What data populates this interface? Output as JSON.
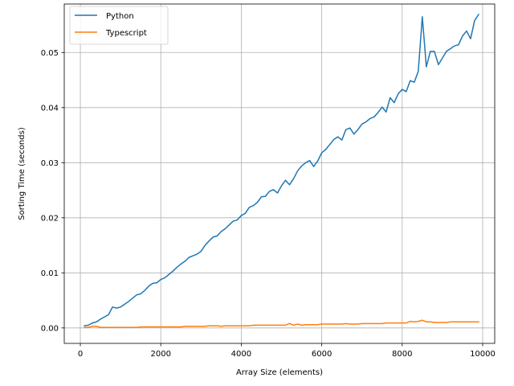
{
  "chart_data": {
    "type": "line",
    "title": "",
    "xlabel": "Array Size (elements)",
    "ylabel": "Sorting Time (seconds)",
    "xlim": [
      -400,
      10300
    ],
    "ylim": [
      -0.0028,
      0.0588
    ],
    "xticks": [
      0,
      2000,
      4000,
      6000,
      8000,
      10000
    ],
    "xtick_labels": [
      "0",
      "2000",
      "4000",
      "6000",
      "8000",
      "10000"
    ],
    "yticks": [
      0.0,
      0.01,
      0.02,
      0.03,
      0.04,
      0.05
    ],
    "ytick_labels": [
      "0.00",
      "0.01",
      "0.02",
      "0.03",
      "0.04",
      "0.05"
    ],
    "grid": true,
    "legend_position": "upper-left",
    "series": [
      {
        "name": "Python",
        "color": "#1f77b4",
        "x": [
          100,
          200,
          300,
          400,
          500,
          600,
          700,
          800,
          900,
          1000,
          1100,
          1200,
          1300,
          1400,
          1500,
          1600,
          1700,
          1800,
          1900,
          2000,
          2100,
          2200,
          2300,
          2400,
          2500,
          2600,
          2700,
          2800,
          2900,
          3000,
          3100,
          3200,
          3300,
          3400,
          3500,
          3600,
          3700,
          3800,
          3900,
          4000,
          4100,
          4200,
          4300,
          4400,
          4500,
          4600,
          4700,
          4800,
          4900,
          5000,
          5100,
          5200,
          5300,
          5400,
          5500,
          5600,
          5700,
          5800,
          5900,
          6000,
          6100,
          6200,
          6300,
          6400,
          6500,
          6600,
          6700,
          6800,
          6900,
          7000,
          7100,
          7200,
          7300,
          7400,
          7500,
          7600,
          7700,
          7800,
          7900,
          8000,
          8100,
          8200,
          8300,
          8400,
          8500,
          8600,
          8700,
          8800,
          8900,
          9000,
          9100,
          9200,
          9300,
          9400,
          9500,
          9600,
          9700,
          9800,
          9900
        ],
        "y": [
          0.0004,
          0.0005,
          0.0009,
          0.0011,
          0.0016,
          0.002,
          0.0024,
          0.0038,
          0.0036,
          0.0038,
          0.0043,
          0.0048,
          0.0054,
          0.006,
          0.0062,
          0.0068,
          0.0076,
          0.0081,
          0.0082,
          0.0088,
          0.0091,
          0.0097,
          0.0103,
          0.011,
          0.0116,
          0.0121,
          0.0128,
          0.0131,
          0.0134,
          0.0139,
          0.015,
          0.0158,
          0.0165,
          0.0167,
          0.0175,
          0.018,
          0.0187,
          0.0194,
          0.0196,
          0.0204,
          0.0208,
          0.0219,
          0.0222,
          0.0228,
          0.0238,
          0.0239,
          0.0248,
          0.0251,
          0.0245,
          0.0258,
          0.0268,
          0.026,
          0.0271,
          0.0285,
          0.0294,
          0.03,
          0.0304,
          0.0293,
          0.0303,
          0.0318,
          0.0324,
          0.0333,
          0.0342,
          0.0347,
          0.0341,
          0.036,
          0.0363,
          0.0352,
          0.036,
          0.037,
          0.0374,
          0.038,
          0.0383,
          0.0391,
          0.0401,
          0.0392,
          0.0418,
          0.0409,
          0.0425,
          0.0433,
          0.0429,
          0.0449,
          0.0446,
          0.0466,
          0.0565,
          0.0474,
          0.0502,
          0.0502,
          0.0478,
          0.049,
          0.0502,
          0.0507,
          0.0512,
          0.0514,
          0.053,
          0.0539,
          0.0525,
          0.0558,
          0.0569
        ]
      },
      {
        "name": "Typescript",
        "color": "#ff7f0e",
        "x": [
          100,
          200,
          300,
          400,
          500,
          600,
          700,
          800,
          900,
          1000,
          1100,
          1200,
          1300,
          1400,
          1500,
          1600,
          1700,
          1800,
          1900,
          2000,
          2100,
          2200,
          2300,
          2400,
          2500,
          2600,
          2700,
          2800,
          2900,
          3000,
          3100,
          3200,
          3300,
          3400,
          3500,
          3600,
          3700,
          3800,
          3900,
          4000,
          4100,
          4200,
          4300,
          4400,
          4500,
          4600,
          4700,
          4800,
          4900,
          5000,
          5100,
          5200,
          5300,
          5400,
          5500,
          5600,
          5700,
          5800,
          5900,
          6000,
          6100,
          6200,
          6300,
          6400,
          6500,
          6600,
          6700,
          6800,
          6900,
          7000,
          7100,
          7200,
          7300,
          7400,
          7500,
          7600,
          7700,
          7800,
          7900,
          8000,
          8100,
          8200,
          8300,
          8400,
          8500,
          8600,
          8700,
          8800,
          8900,
          9000,
          9100,
          9200,
          9300,
          9400,
          9500,
          9600,
          9700,
          9800,
          9900
        ],
        "y": [
          0.0001,
          0.0001,
          0.0003,
          0.0003,
          0.0001,
          0.0001,
          0.0001,
          0.0001,
          0.0001,
          0.0001,
          0.0001,
          0.0001,
          0.0001,
          0.0001,
          0.0002,
          0.0002,
          0.0002,
          0.0002,
          0.0002,
          0.0002,
          0.0002,
          0.0002,
          0.0002,
          0.0002,
          0.0002,
          0.0003,
          0.0003,
          0.0003,
          0.0003,
          0.0003,
          0.0003,
          0.0004,
          0.0004,
          0.0004,
          0.0003,
          0.0004,
          0.0004,
          0.0004,
          0.0004,
          0.0004,
          0.0004,
          0.0004,
          0.0005,
          0.0005,
          0.0005,
          0.0005,
          0.0005,
          0.0005,
          0.0005,
          0.0005,
          0.0005,
          0.0008,
          0.0005,
          0.0007,
          0.0005,
          0.0006,
          0.0006,
          0.0006,
          0.0006,
          0.0007,
          0.0007,
          0.0007,
          0.0007,
          0.0007,
          0.0007,
          0.0008,
          0.0007,
          0.0007,
          0.0007,
          0.0008,
          0.0008,
          0.0008,
          0.0008,
          0.0008,
          0.0008,
          0.0009,
          0.0009,
          0.0009,
          0.0009,
          0.0009,
          0.0009,
          0.0012,
          0.0011,
          0.0012,
          0.0014,
          0.0011,
          0.0011,
          0.001,
          0.001,
          0.001,
          0.001,
          0.0011,
          0.0011,
          0.0011,
          0.0011,
          0.0011,
          0.0011,
          0.0011,
          0.0011
        ]
      }
    ]
  }
}
